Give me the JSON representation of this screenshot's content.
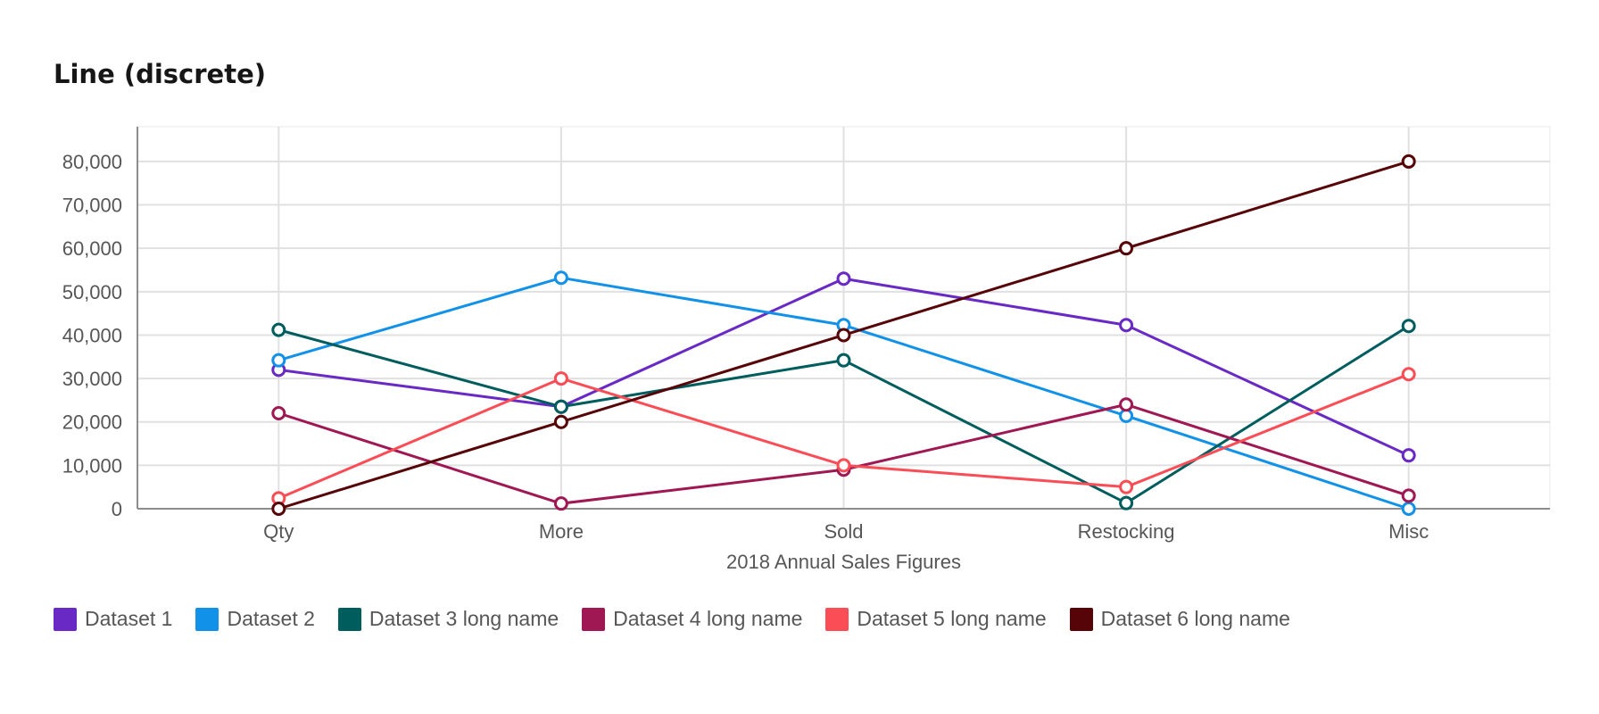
{
  "chart_data": {
    "type": "line",
    "title": "Line (discrete)",
    "xlabel": "2018 Annual Sales Figures",
    "ylabel": "",
    "categories": [
      "Qty",
      "More",
      "Sold",
      "Restocking",
      "Misc"
    ],
    "ylim": [
      0,
      88000
    ],
    "yticks": [
      0,
      10000,
      20000,
      30000,
      40000,
      50000,
      60000,
      70000,
      80000
    ],
    "ytick_labels": [
      "0",
      "10,000",
      "20,000",
      "30,000",
      "40,000",
      "50,000",
      "60,000",
      "70,000",
      "80,000"
    ],
    "grid": true,
    "legend_position": "bottom-left",
    "series": [
      {
        "name": "Dataset 1",
        "color": "#6929c4",
        "values": [
          32000,
          23500,
          53000,
          42300,
          12300
        ]
      },
      {
        "name": "Dataset 2",
        "color": "#1192e8",
        "values": [
          34200,
          53200,
          42300,
          21400,
          0
        ]
      },
      {
        "name": "Dataset 3 long name",
        "color": "#005d5d",
        "values": [
          41200,
          23500,
          34200,
          1300,
          42100
        ]
      },
      {
        "name": "Dataset 4 long name",
        "color": "#9f1853",
        "values": [
          22000,
          1200,
          9000,
          24000,
          3000
        ]
      },
      {
        "name": "Dataset 5 long name",
        "color": "#fa4d56",
        "values": [
          2400,
          30000,
          10000,
          5000,
          31000
        ]
      },
      {
        "name": "Dataset 6 long name",
        "color": "#570408",
        "values": [
          0,
          20000,
          40000,
          60000,
          80000
        ]
      }
    ]
  }
}
